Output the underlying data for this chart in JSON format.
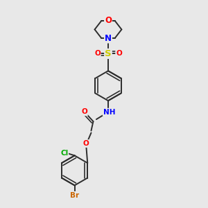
{
  "bg_color": "#e8e8e8",
  "bond_color": "#2d2d2d",
  "bond_width": 1.4,
  "atom_colors": {
    "O": "#ff0000",
    "N": "#0000ff",
    "S": "#cccc00",
    "Cl": "#00aa00",
    "Br": "#cc6600",
    "C": "#2d2d2d",
    "H": "#4488bb"
  },
  "font_size": 7.5,
  "fig_size": [
    3.0,
    3.0
  ],
  "dpi": 100,
  "xlim": [
    0,
    10
  ],
  "ylim": [
    0,
    10
  ]
}
